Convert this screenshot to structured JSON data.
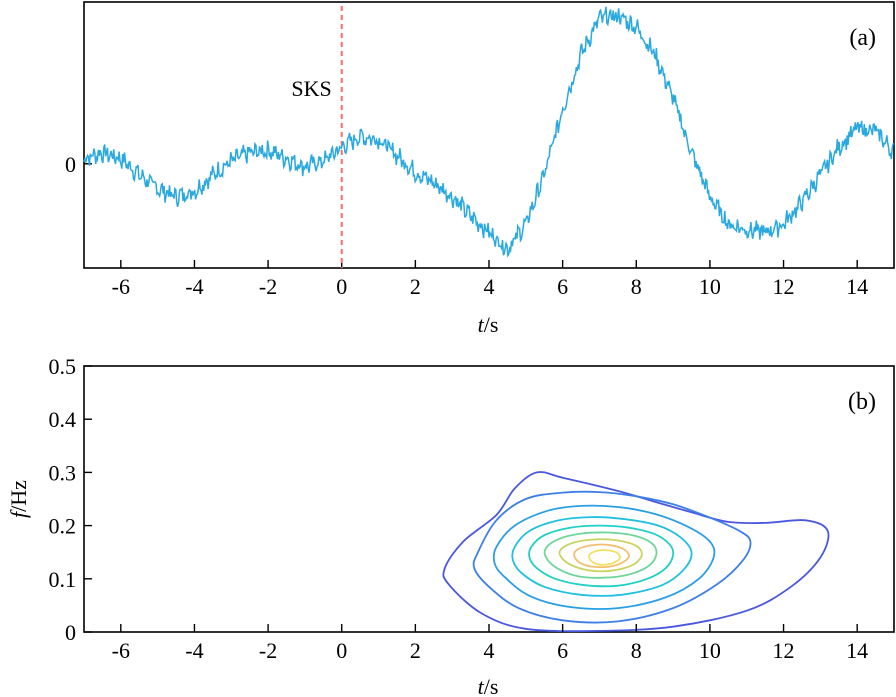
{
  "chart_data": [
    {
      "type": "line",
      "panel_label": "(a)",
      "xlabel_italic": "t",
      "xlabel_rest": "/s",
      "ylabel": "",
      "xlim": [
        -7,
        15
      ],
      "ylim": [
        -1.9,
        2.95
      ],
      "x_ticks": [
        -6,
        -4,
        -2,
        0,
        2,
        4,
        6,
        8,
        10,
        12,
        14
      ],
      "x_tick_labels": [
        "-6",
        "-4",
        "-2",
        "0",
        "2",
        "4",
        "6",
        "8",
        "10",
        "12",
        "14"
      ],
      "y_ticks": [
        0
      ],
      "y_tick_labels": [
        "0"
      ],
      "annotation": {
        "text": "SKS",
        "x": 0
      },
      "marker_color": "#ff6b6b",
      "series": [
        {
          "color": "#29a9e0",
          "x": [
            -7,
            -6.5,
            -6,
            -5.5,
            -5,
            -4.5,
            -4,
            -3.5,
            -3,
            -2.5,
            -2,
            -1.5,
            -1,
            -0.5,
            0,
            0.5,
            1,
            1.5,
            2,
            2.5,
            3,
            3.5,
            4,
            4.5,
            5,
            5.5,
            6,
            6.5,
            7,
            7.5,
            8,
            8.5,
            9,
            9.5,
            10,
            10.5,
            11,
            11.5,
            12,
            12.5,
            13,
            13.5,
            14,
            14.5,
            15
          ],
          "values": [
            0.1,
            0.2,
            0.1,
            -0.2,
            -0.45,
            -0.6,
            -0.5,
            -0.2,
            0.05,
            0.2,
            0.25,
            0.1,
            -0.05,
            0.05,
            0.3,
            0.5,
            0.45,
            0.15,
            -0.15,
            -0.35,
            -0.6,
            -0.95,
            -1.25,
            -1.55,
            -1.1,
            -0.2,
            1.0,
            2.0,
            2.65,
            2.7,
            2.5,
            2.0,
            1.2,
            0.2,
            -0.6,
            -1.1,
            -1.2,
            -1.25,
            -1.1,
            -0.7,
            -0.2,
            0.3,
            0.65,
            0.6,
            0.2
          ]
        }
      ]
    },
    {
      "type": "contour",
      "panel_label": "(b)",
      "xlabel_italic": "t",
      "xlabel_rest": "/s",
      "ylabel_italic": "f",
      "ylabel_rest": "/Hz",
      "xlim": [
        -7,
        15
      ],
      "ylim": [
        0,
        0.5
      ],
      "x_ticks": [
        -6,
        -4,
        -2,
        0,
        2,
        4,
        6,
        8,
        10,
        12,
        14
      ],
      "x_tick_labels": [
        "-6",
        "-4",
        "-2",
        "0",
        "2",
        "4",
        "6",
        "8",
        "10",
        "12",
        "14"
      ],
      "y_ticks": [
        0,
        0.1,
        0.2,
        0.3,
        0.4,
        0.5
      ],
      "y_tick_labels": [
        "0",
        "0.1",
        "0.2",
        "0.3",
        "0.4",
        "0.5"
      ],
      "peak": {
        "t": 7.2,
        "f": 0.135
      },
      "contours": [
        {
          "color": "#4a58e0",
          "points": [
            [
              2.8,
              0.12
            ],
            [
              3.3,
              0.17
            ],
            [
              4.2,
              0.22
            ],
            [
              4.7,
              0.27
            ],
            [
              5.3,
              0.3
            ],
            [
              6.0,
              0.29
            ],
            [
              7.4,
              0.267
            ],
            [
              8.5,
              0.245
            ],
            [
              9.5,
              0.225
            ],
            [
              10.5,
              0.207
            ],
            [
              11.5,
              0.205
            ],
            [
              12.6,
              0.21
            ],
            [
              13.2,
              0.19
            ],
            [
              13.0,
              0.14
            ],
            [
              12.2,
              0.085
            ],
            [
              11.0,
              0.04
            ],
            [
              9.0,
              0.01
            ],
            [
              7.0,
              0.002
            ],
            [
              5.0,
              0.006
            ],
            [
              3.8,
              0.035
            ],
            [
              2.9,
              0.09
            ]
          ]
        },
        {
          "color": "#3d7fe6",
          "points": [
            [
              3.7,
              0.15
            ],
            [
              4.2,
              0.21
            ],
            [
              5.0,
              0.25
            ],
            [
              6.0,
              0.262
            ],
            [
              7.0,
              0.263
            ],
            [
              8.0,
              0.255
            ],
            [
              9.0,
              0.24
            ],
            [
              10.0,
              0.215
            ],
            [
              10.8,
              0.19
            ],
            [
              11.1,
              0.17
            ],
            [
              10.9,
              0.135
            ],
            [
              10.2,
              0.09
            ],
            [
              9.0,
              0.045
            ],
            [
              7.5,
              0.02
            ],
            [
              6.0,
              0.022
            ],
            [
              4.8,
              0.045
            ],
            [
              4.0,
              0.085
            ],
            [
              3.6,
              0.12
            ]
          ]
        },
        {
          "color": "#2a9fe6",
          "points": [
            [
              4.2,
              0.16
            ],
            [
              4.7,
              0.2
            ],
            [
              5.6,
              0.228
            ],
            [
              6.5,
              0.237
            ],
            [
              7.5,
              0.235
            ],
            [
              8.5,
              0.222
            ],
            [
              9.4,
              0.198
            ],
            [
              10.0,
              0.17
            ],
            [
              10.1,
              0.14
            ],
            [
              9.7,
              0.1
            ],
            [
              8.8,
              0.065
            ],
            [
              7.5,
              0.045
            ],
            [
              6.2,
              0.047
            ],
            [
              5.1,
              0.068
            ],
            [
              4.4,
              0.105
            ],
            [
              4.15,
              0.13
            ]
          ]
        },
        {
          "color": "#1fc0e0",
          "points": [
            [
              4.7,
              0.16
            ],
            [
              5.1,
              0.19
            ],
            [
              5.9,
              0.21
            ],
            [
              6.8,
              0.216
            ],
            [
              7.7,
              0.212
            ],
            [
              8.6,
              0.2
            ],
            [
              9.2,
              0.178
            ],
            [
              9.5,
              0.15
            ],
            [
              9.3,
              0.118
            ],
            [
              8.7,
              0.088
            ],
            [
              7.6,
              0.07
            ],
            [
              6.5,
              0.07
            ],
            [
              5.5,
              0.085
            ],
            [
              4.9,
              0.11
            ],
            [
              4.65,
              0.135
            ]
          ]
        },
        {
          "color": "#1fd0c4",
          "points": [
            [
              5.15,
              0.16
            ],
            [
              5.5,
              0.182
            ],
            [
              6.2,
              0.196
            ],
            [
              7.0,
              0.2
            ],
            [
              7.8,
              0.196
            ],
            [
              8.5,
              0.184
            ],
            [
              8.9,
              0.165
            ],
            [
              9.0,
              0.145
            ],
            [
              8.8,
              0.12
            ],
            [
              8.3,
              0.1
            ],
            [
              7.5,
              0.087
            ],
            [
              6.6,
              0.088
            ],
            [
              5.8,
              0.1
            ],
            [
              5.3,
              0.12
            ],
            [
              5.1,
              0.14
            ]
          ]
        },
        {
          "color": "#6fd69a",
          "points": [
            [
              5.55,
              0.158
            ],
            [
              5.9,
              0.175
            ],
            [
              6.5,
              0.185
            ],
            [
              7.2,
              0.187
            ],
            [
              7.9,
              0.182
            ],
            [
              8.4,
              0.168
            ],
            [
              8.55,
              0.148
            ],
            [
              8.35,
              0.125
            ],
            [
              7.8,
              0.108
            ],
            [
              7.1,
              0.102
            ],
            [
              6.4,
              0.105
            ],
            [
              5.85,
              0.12
            ],
            [
              5.55,
              0.14
            ]
          ]
        },
        {
          "color": "#c8d460",
          "points": [
            [
              5.95,
              0.155
            ],
            [
              6.3,
              0.168
            ],
            [
              6.9,
              0.174
            ],
            [
              7.5,
              0.172
            ],
            [
              8.0,
              0.162
            ],
            [
              8.15,
              0.145
            ],
            [
              7.9,
              0.126
            ],
            [
              7.3,
              0.115
            ],
            [
              6.7,
              0.116
            ],
            [
              6.2,
              0.127
            ],
            [
              5.95,
              0.142
            ]
          ]
        },
        {
          "color": "#f2c070",
          "points": [
            [
              6.35,
              0.152
            ],
            [
              6.7,
              0.162
            ],
            [
              7.2,
              0.164
            ],
            [
              7.65,
              0.156
            ],
            [
              7.8,
              0.142
            ],
            [
              7.55,
              0.128
            ],
            [
              7.1,
              0.122
            ],
            [
              6.6,
              0.126
            ],
            [
              6.35,
              0.138
            ]
          ]
        },
        {
          "color": "#f3e060",
          "points": [
            [
              6.75,
              0.147
            ],
            [
              7.05,
              0.154
            ],
            [
              7.45,
              0.15
            ],
            [
              7.55,
              0.138
            ],
            [
              7.3,
              0.128
            ],
            [
              6.95,
              0.127
            ],
            [
              6.75,
              0.136
            ]
          ]
        }
      ]
    }
  ]
}
